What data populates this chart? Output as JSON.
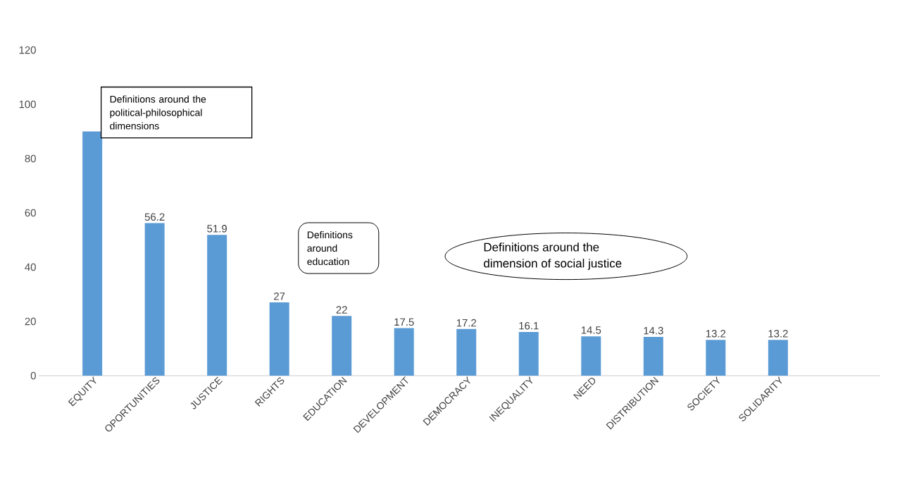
{
  "chart_data": {
    "type": "bar",
    "categories": [
      "EQUITY",
      "OPORTUNITIES",
      "JUSTICE",
      "RIGHTS",
      "EDUCATION",
      "DEVELOPMENT",
      "DEMOCRACY",
      "INEQUALITY",
      "NEED",
      "DISTRIBUTION",
      "SOCIETY",
      "SOLIDARITY"
    ],
    "values": [
      90,
      56.2,
      51.9,
      27,
      22,
      17.5,
      17.2,
      16.1,
      14.5,
      14.3,
      13.2,
      13.2
    ],
    "value_labels": [
      null,
      "56.2",
      "51.9",
      "27",
      "22",
      "17.5",
      "17.2",
      "16.1",
      "14.5",
      "14.3",
      "13.2",
      "13.2"
    ],
    "color": "#5b9bd5",
    "ylim": [
      0,
      120
    ],
    "yticks": [
      0,
      20,
      40,
      60,
      80,
      100,
      120
    ],
    "grid": false,
    "annotations": [
      "Definitions around the political-philosophical dimensions",
      "Definitions around education",
      "Definitions around the dimension of social justice"
    ]
  }
}
